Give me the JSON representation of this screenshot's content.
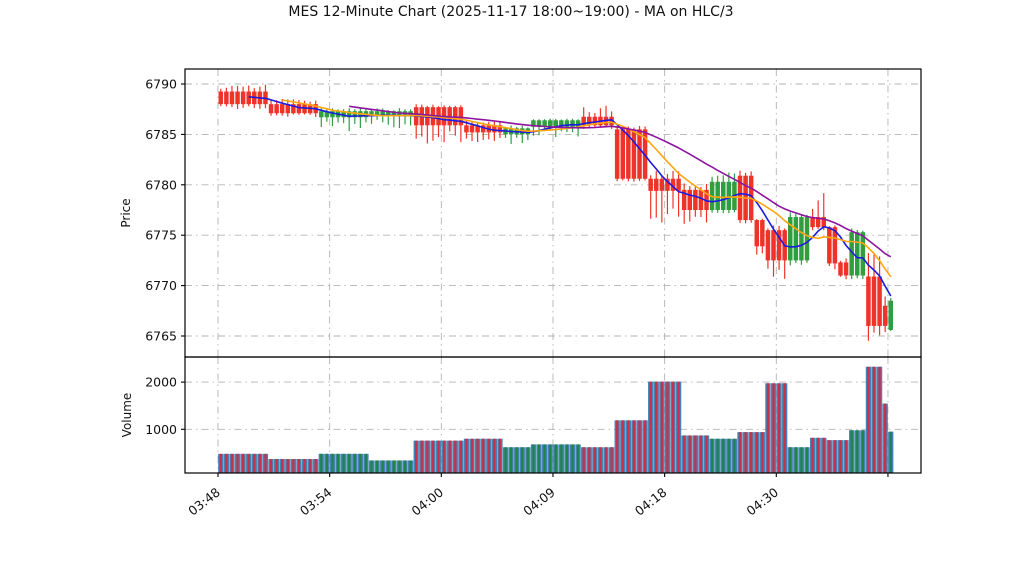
{
  "title": "MES 12-Minute Chart (2025-11-17 18:00~19:00) - MA on HLC/3",
  "price_axis": {
    "label": "Price",
    "ticks": [
      6790,
      6785,
      6780,
      6775,
      6770,
      6765
    ]
  },
  "volume_axis": {
    "label": "Volume",
    "ticks": [
      2000,
      1000
    ]
  },
  "x_axis": {
    "labels": [
      "03:48",
      "03:54",
      "04:00",
      "04:09",
      "04:18",
      "04:30"
    ],
    "tick_bar_indices": [
      0,
      20,
      40,
      60,
      80,
      100,
      120
    ]
  },
  "colors": {
    "up": "#2f9e41",
    "down": "#f03328",
    "ma_fast": "#1b1bdd",
    "ma_mid": "#ffa510",
    "ma_slow": "#8c14a0",
    "volume_base": "#4682b4",
    "volume_up": "#1e8449",
    "volume_down": "#c93049",
    "grid": "#b3b3b3",
    "spine": "#000000"
  },
  "chart_data": {
    "type": "candlestick+volume",
    "title": "MES 12-Minute Chart (2025-11-17 18:00~19:00) - MA on HLC/3",
    "ylabel_price": "Price",
    "ylabel_volume": "Volume",
    "price_ylim": [
      6762.9,
      6791.5
    ],
    "volume_ylim": [
      0,
      2530
    ],
    "grid": "dash-dot",
    "moving_averages": [
      {
        "name": "MA fast (blue)",
        "window": 6,
        "color_key": "ma_fast"
      },
      {
        "name": "MA mid (orange)",
        "window": 12,
        "color_key": "ma_mid"
      },
      {
        "name": "MA slow (purple)",
        "window": 24,
        "color_key": "ma_slow"
      }
    ],
    "segments": [
      {
        "bars": 9,
        "open": 6789.25,
        "close": 6788.0,
        "high": 6790.0,
        "low": 6787.5,
        "volume": 480
      },
      {
        "bars": 9,
        "open": 6788.0,
        "close": 6787.1,
        "high": 6788.6,
        "low": 6786.7,
        "volume": 370
      },
      {
        "bars": 9,
        "open": 6786.7,
        "close": 6787.3,
        "high": 6787.6,
        "low": 6785.3,
        "volume": 480
      },
      {
        "bars": 8,
        "open": 6786.9,
        "close": 6787.3,
        "high": 6787.6,
        "low": 6785.6,
        "volume": 340
      },
      {
        "bars": 9,
        "open": 6787.7,
        "close": 6785.9,
        "high": 6788.0,
        "low": 6784.1,
        "volume": 760
      },
      {
        "bars": 7,
        "open": 6785.9,
        "close": 6785.2,
        "high": 6786.4,
        "low": 6784.0,
        "volume": 800
      },
      {
        "bars": 5,
        "open": 6785.0,
        "close": 6785.6,
        "high": 6785.9,
        "low": 6784.0,
        "volume": 620
      },
      {
        "bars": 9,
        "open": 6785.75,
        "close": 6786.4,
        "high": 6786.6,
        "low": 6784.6,
        "volume": 680
      },
      {
        "bars": 6,
        "open": 6786.75,
        "close": 6785.9,
        "high": 6787.9,
        "low": 6785.4,
        "volume": 620
      },
      {
        "bars": 6,
        "open": 6785.5,
        "close": 6780.6,
        "high": 6785.9,
        "low": 6780.3,
        "volume": 1190
      },
      {
        "bars": 6,
        "open": 6780.6,
        "close": 6779.4,
        "high": 6781.4,
        "low": 6776.2,
        "volume": 2010
      },
      {
        "bars": 5,
        "open": 6779.5,
        "close": 6777.5,
        "high": 6780.2,
        "low": 6775.5,
        "volume": 870
      },
      {
        "bars": 5,
        "open": 6777.5,
        "close": 6780.3,
        "high": 6781.3,
        "low": 6777.0,
        "volume": 800
      },
      {
        "bars": 3,
        "open": 6780.9,
        "close": 6776.5,
        "high": 6781.5,
        "low": 6775.8,
        "volume": 940
      },
      {
        "bars": 2,
        "open": 6776.5,
        "close": 6773.9,
        "high": 6776.8,
        "low": 6773.0,
        "volume": 940
      },
      {
        "bars": 4,
        "open": 6775.5,
        "close": 6772.5,
        "high": 6776.0,
        "low": 6770.5,
        "volume": 1975
      },
      {
        "bars": 4,
        "open": 6772.5,
        "close": 6776.8,
        "high": 6777.3,
        "low": 6772.0,
        "volume": 620
      },
      {
        "bars": 3,
        "open": 6776.8,
        "close": 6775.8,
        "high": 6779.3,
        "low": 6775.3,
        "volume": 820
      },
      {
        "bars": 2,
        "open": 6775.8,
        "close": 6772.2,
        "high": 6776.0,
        "low": 6771.5,
        "volume": 770
      },
      {
        "bars": 2,
        "open": 6772.3,
        "close": 6771.0,
        "high": 6772.8,
        "low": 6770.6,
        "volume": 770
      },
      {
        "bars": 3,
        "open": 6771.0,
        "close": 6775.3,
        "high": 6775.8,
        "low": 6770.6,
        "volume": 980
      },
      {
        "bars": 3,
        "open": 6770.9,
        "close": 6766.0,
        "high": 6774.0,
        "low": 6764.4,
        "volume": 2325
      },
      {
        "bars": 1,
        "open": 6768.0,
        "close": 6766.0,
        "high": 6769.5,
        "low": 6765.0,
        "volume": 1545
      },
      {
        "bars": 1,
        "open": 6765.6,
        "close": 6768.5,
        "high": 6769.0,
        "low": 6765.3,
        "volume": 950
      }
    ]
  }
}
